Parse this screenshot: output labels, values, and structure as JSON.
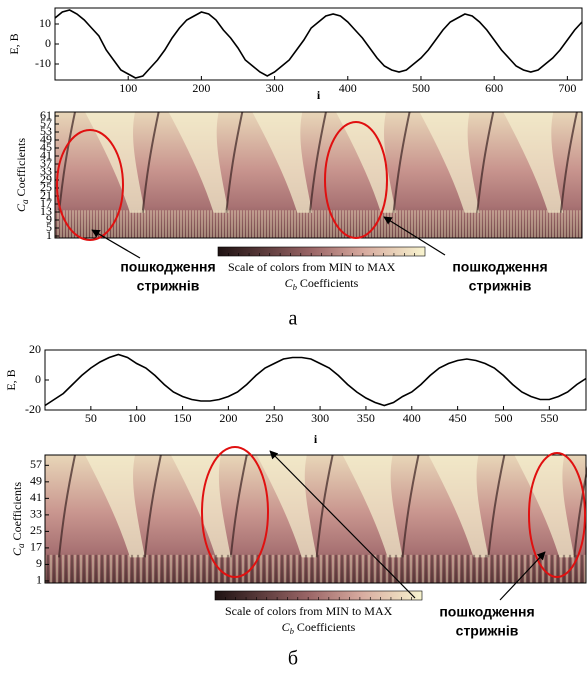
{
  "chart_data": [
    {
      "type": "line",
      "ylabel": "E, B",
      "xlabel": "i",
      "xlim": [
        0,
        720
      ],
      "xticks": [
        100,
        200,
        300,
        400,
        500,
        600,
        700
      ],
      "ylim": [
        -18,
        18
      ],
      "yticks": [
        -10,
        0,
        10
      ],
      "color": "#000000",
      "x": [
        0,
        10,
        20,
        30,
        40,
        50,
        60,
        70,
        80,
        90,
        100,
        110,
        120,
        130,
        140,
        150,
        160,
        170,
        180,
        190,
        200,
        210,
        220,
        230,
        240,
        250,
        260,
        270,
        280,
        290,
        300,
        310,
        320,
        330,
        340,
        350,
        360,
        370,
        380,
        390,
        400,
        410,
        420,
        430,
        440,
        450,
        460,
        470,
        480,
        490,
        500,
        510,
        520,
        530,
        540,
        550,
        560,
        570,
        580,
        590,
        600,
        610,
        620,
        630,
        640,
        650,
        660,
        670,
        680,
        690,
        700,
        710,
        720
      ],
      "values": [
        13,
        16,
        17,
        15,
        12,
        8,
        4,
        -3,
        -8,
        -13,
        -15,
        -17,
        -16,
        -12,
        -8,
        -3,
        3,
        8,
        12,
        14,
        16,
        15,
        12,
        7,
        3,
        -2,
        -8,
        -11,
        -14,
        -16,
        -14,
        -11,
        -8,
        -3,
        2,
        8,
        11,
        14,
        15,
        14,
        11,
        7,
        3,
        -2,
        -7,
        -11,
        -13,
        -14,
        -13,
        -10,
        -7,
        -3,
        2,
        7,
        11,
        13,
        15,
        14,
        11,
        7,
        2,
        -3,
        -7,
        -11,
        -13,
        -14,
        -13,
        -10,
        -7,
        -3,
        2,
        7,
        11
      ]
    },
    {
      "type": "image",
      "ylabel": {
        "symbol": "C",
        "subscript": "a",
        "text": "Coefficients"
      },
      "ylim": [
        0,
        63
      ],
      "yticks": [
        1,
        5,
        9,
        13,
        17,
        21,
        25,
        29,
        33,
        37,
        41,
        45,
        49,
        53,
        57,
        61
      ],
      "colorbar_caption": "Scale of colors from MIN to MAX",
      "xlabel": {
        "symbol": "C",
        "subscript": "b",
        "text": "Coefficients"
      },
      "annotations": [
        [
          "пошкодження",
          "стрижнів"
        ],
        [
          "пошкодження",
          "стрижнів"
        ]
      ],
      "panel_label": "а"
    },
    {
      "type": "line",
      "ylabel": "E, B",
      "xlabel": "i",
      "xlim": [
        0,
        590
      ],
      "xticks": [
        50,
        100,
        150,
        200,
        250,
        300,
        350,
        400,
        450,
        500,
        550
      ],
      "ylim": [
        -20,
        20
      ],
      "yticks": [
        -20,
        0,
        20
      ],
      "color": "#000000",
      "x": [
        0,
        10,
        20,
        30,
        40,
        50,
        60,
        70,
        80,
        90,
        100,
        110,
        120,
        130,
        140,
        150,
        160,
        170,
        180,
        190,
        200,
        210,
        220,
        230,
        240,
        250,
        260,
        270,
        280,
        290,
        300,
        310,
        320,
        330,
        340,
        350,
        360,
        370,
        380,
        390,
        400,
        410,
        420,
        430,
        440,
        450,
        460,
        470,
        480,
        490,
        500,
        510,
        520,
        530,
        540,
        550,
        560,
        570,
        580,
        590
      ],
      "values": [
        -17,
        -13,
        -9,
        -3,
        3,
        8,
        12,
        15,
        17,
        15,
        11,
        8,
        3,
        -3,
        -8,
        -11,
        -13,
        -14,
        -14,
        -13,
        -11,
        -8,
        -3,
        3,
        8,
        11,
        14,
        15,
        15,
        14,
        11,
        8,
        3,
        -3,
        -8,
        -12,
        -15,
        -17,
        -15,
        -11,
        -8,
        -3,
        3,
        8,
        11,
        13,
        14,
        13,
        11,
        8,
        3,
        -3,
        -8,
        -11,
        -13,
        -13,
        -11,
        -8,
        -3,
        1
      ]
    },
    {
      "type": "image",
      "ylabel": {
        "symbol": "C",
        "subscript": "a",
        "text": "Coefficients"
      },
      "ylim": [
        0,
        62
      ],
      "yticks": [
        1,
        9,
        17,
        25,
        33,
        41,
        49,
        57
      ],
      "colorbar_caption": "Scale of colors from MIN to MAX",
      "xlabel": {
        "symbol": "C",
        "subscript": "b",
        "text": "Coefficients"
      },
      "annotations": [
        [
          "пошкодження",
          "стрижнів"
        ]
      ],
      "panel_label": "б"
    }
  ]
}
